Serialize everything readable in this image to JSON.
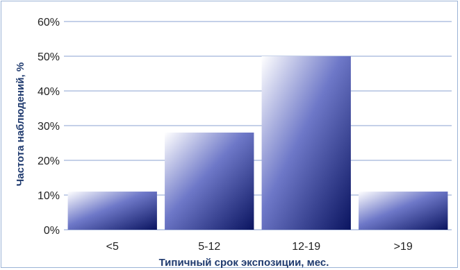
{
  "chart_data": {
    "type": "bar",
    "categories": [
      "<5",
      "5-12",
      "12-19",
      ">19"
    ],
    "values": [
      11,
      28,
      50,
      11
    ],
    "title": "",
    "xlabel": "Типичный срок экспозиции, мес.",
    "ylabel": "Частота наблюдений, %",
    "ylim": [
      0,
      60
    ],
    "yticks": [
      "0%",
      "10%",
      "20%",
      "30%",
      "40%",
      "50%",
      "60%"
    ],
    "grid": true,
    "legend": "none",
    "colors": {
      "bar_light": "#ffffff",
      "bar_mid": "#6e78c8",
      "bar_dark": "#0a1460",
      "grid": "#8aa0d0"
    }
  }
}
